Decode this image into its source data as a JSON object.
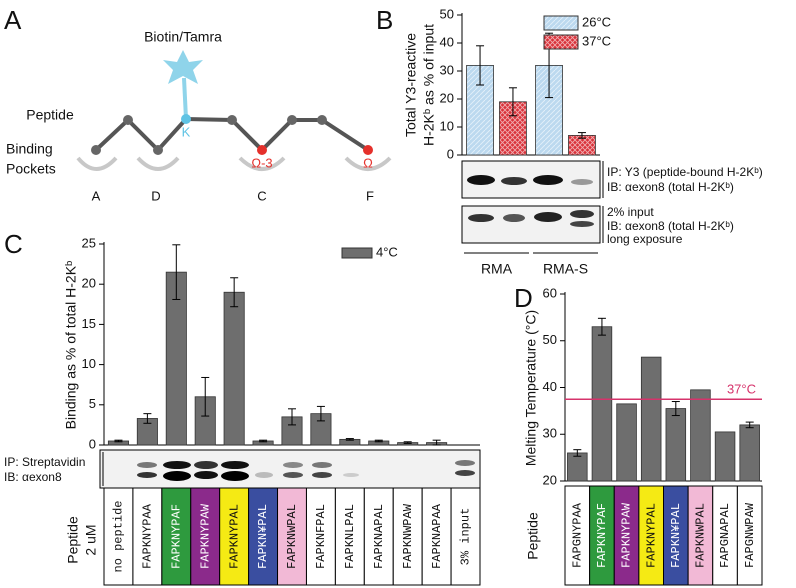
{
  "panel_labels": [
    "A",
    "B",
    "C",
    "D"
  ],
  "diagram": {
    "tag": "Biotin/Tamra",
    "peptide": "Peptide",
    "residue": "K",
    "pockets_label": [
      "Binding",
      "Pockets"
    ],
    "pocket_marks": [
      "Ω-3",
      "Ω"
    ],
    "pockets": [
      "A",
      "D",
      "C",
      "F"
    ]
  },
  "chart_data": [
    {
      "type": "bar",
      "ylabel": [
        "Total Y3-reactive",
        "H-2Kᵇ as % of input"
      ],
      "categories": [
        "RMA",
        "RMA-S"
      ],
      "series": [
        {
          "name": "26°C",
          "color": "#bcd9ef",
          "values": [
            32,
            32
          ],
          "errors": [
            7,
            11.5
          ]
        },
        {
          "name": "37°C",
          "color": "#d9323a",
          "values": [
            19,
            7
          ],
          "errors": [
            5,
            1
          ]
        }
      ],
      "hatch": true,
      "ylim": [
        0,
        50
      ],
      "yticks": [
        0,
        10,
        20,
        30,
        40,
        50
      ],
      "legend": "upper right",
      "annotations": [
        "IP: Y3 (peptide-bound H-2Kᵇ)",
        "IB: αexon8 (total H-2Kᵇ)",
        "2% input",
        "IB: αexon8 (total H-2Kᵇ)",
        "long exposure"
      ]
    },
    {
      "type": "bar",
      "ylabel": [
        "Binding as % of total H-2Kᵇ"
      ],
      "xlabel": [
        "Peptide",
        "2 uM"
      ],
      "categories": [
        "no peptide",
        "FAPKNYPAA",
        "FAPKNYPAF",
        "FAPKNYPAW",
        "FAPKNYPAL",
        "FAPKN¥PAL",
        "FAPKNWPAL",
        "FAPKNFPAL",
        "FAPKNLPAL",
        "FAPKNAPAL",
        "FAPKNWPAW",
        "FAPKNAPAA",
        "3% input"
      ],
      "label_colors": [
        "#ffffff",
        "#ffffff",
        "#2e9a3e",
        "#8b2a8b",
        "#f5ea14",
        "#3a4ea0",
        "#f2b9d6",
        "#ffffff",
        "#ffffff",
        "#ffffff",
        "#ffffff",
        "#ffffff",
        "#ffffff"
      ],
      "series": [
        {
          "name": "4°C",
          "color": "#6e6e6e",
          "values": [
            0.5,
            3.3,
            21.5,
            6,
            19,
            0.5,
            3.5,
            3.9,
            0.7,
            0.5,
            0.3,
            0.3,
            null
          ],
          "errors": [
            0.1,
            0.6,
            3.4,
            2.4,
            1.8,
            0.1,
            1,
            0.9,
            0.1,
            0.1,
            0.1,
            0.3,
            null
          ]
        }
      ],
      "ylim": [
        0,
        25
      ],
      "yticks": [
        0,
        5,
        10,
        15,
        20,
        25
      ],
      "legend": "upper right",
      "annotations": [
        "IP: Streptavidin",
        "IB: αexon8"
      ]
    },
    {
      "type": "bar",
      "ylabel": [
        "Melting Temperature (°C)"
      ],
      "xlabel": [
        "Peptide"
      ],
      "categories": [
        "FAPGNYPAA",
        "FAPKNYPAF",
        "FAPKNYPAW",
        "FAPKNYPAL",
        "FAPKN¥PAL",
        "FAPKNWPAL",
        "FAPGNAPAL",
        "FAPGNWPAW"
      ],
      "label_colors": [
        "#ffffff",
        "#2e9a3e",
        "#8b2a8b",
        "#f5ea14",
        "#3a4ea0",
        "#f2b9d6",
        "#ffffff",
        "#ffffff"
      ],
      "values": [
        26,
        53,
        36.5,
        46.5,
        35.5,
        39.5,
        30.5,
        32
      ],
      "errors": [
        0.7,
        1.8,
        null,
        null,
        1.5,
        null,
        null,
        0.6
      ],
      "color": "#6e6e6e",
      "ylim": [
        20,
        60
      ],
      "yticks": [
        20,
        30,
        40,
        50,
        60
      ],
      "reference": {
        "value": 37.5,
        "label": "37°C",
        "color": "#d6336b"
      }
    }
  ]
}
